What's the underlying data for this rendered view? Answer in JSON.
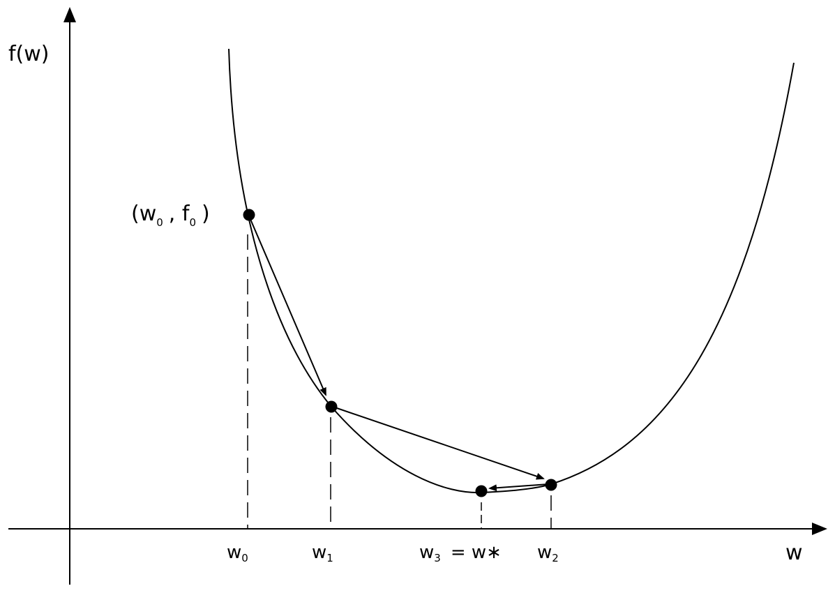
{
  "colors": {
    "ink": "#000000",
    "background": "#ffffff"
  },
  "y_axis": {
    "label": "f(w)"
  },
  "x_axis": {
    "label": "w"
  },
  "start_point_label": {
    "open": "(w",
    "w_sub": "0",
    "sep": ",  f",
    "f_sub": "0",
    "close": ")"
  },
  "x_ticks": {
    "w0": {
      "base": "w",
      "sub": "0"
    },
    "w1": {
      "base": "w",
      "sub": "1"
    },
    "w3": {
      "base": "w",
      "sub": "3",
      "suffix": "= w∗"
    },
    "w2": {
      "base": "w",
      "sub": "2"
    }
  },
  "iterates": [
    {
      "label": "w0",
      "order": 0
    },
    {
      "label": "w1",
      "order": 1
    },
    {
      "label": "w2",
      "order": 2
    },
    {
      "label": "w3",
      "order": 3
    }
  ]
}
